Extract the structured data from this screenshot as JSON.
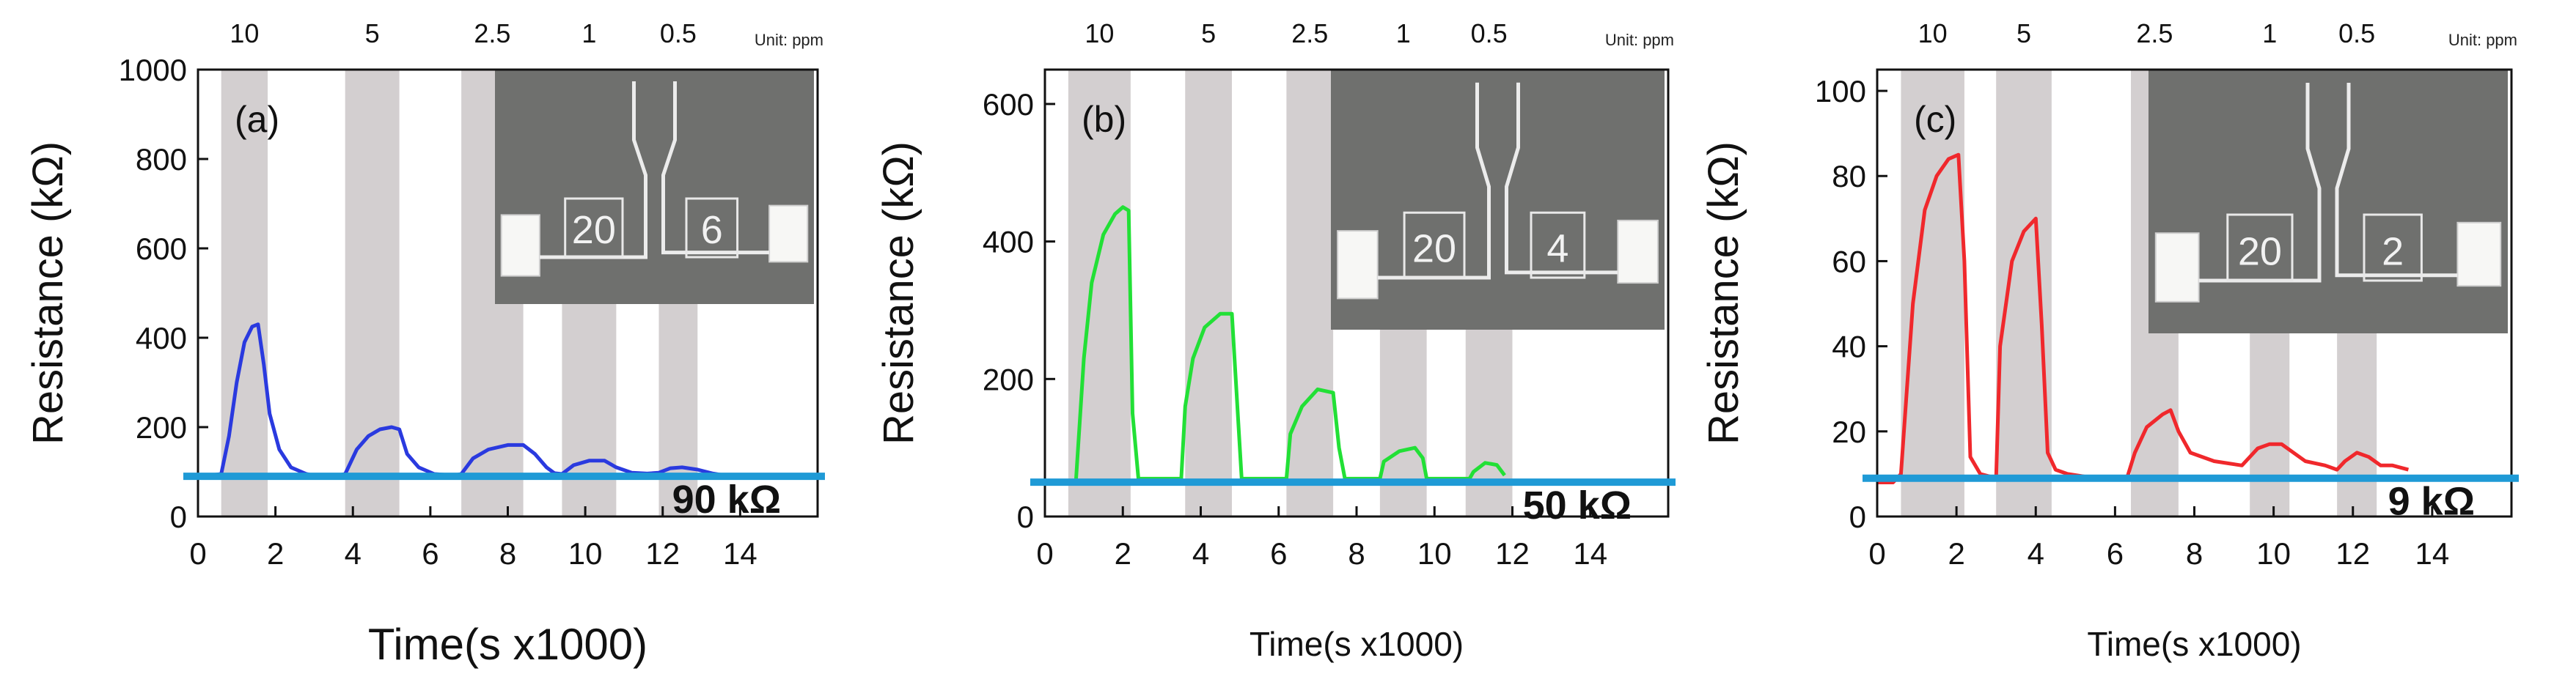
{
  "chart_data": [
    {
      "type": "line",
      "panel_label": "(a)",
      "unit_note": "Unit: ppm",
      "conc_labels": [
        "10",
        "5",
        "2.5",
        "1",
        "0.5"
      ],
      "exposure_windows": [
        [
          0.6,
          1.8
        ],
        [
          3.8,
          5.2
        ],
        [
          6.8,
          8.4
        ],
        [
          9.4,
          10.8
        ],
        [
          11.9,
          12.9
        ]
      ],
      "ylabel": "Resistance (kΩ)",
      "xlabel": "Time(s x1000)",
      "xlim": [
        0,
        16
      ],
      "ylim": [
        0,
        1000
      ],
      "xticks": [
        0,
        2,
        4,
        6,
        8,
        10,
        12,
        14
      ],
      "yticks": [
        0,
        200,
        400,
        600,
        800,
        1000
      ],
      "baseline_value": 90,
      "baseline_label": "90 kΩ",
      "line_color": "#2a3adf",
      "baseline_color": "#1f9ad6",
      "inset_labels": [
        "20",
        "6"
      ],
      "series": [
        {
          "x": [
            0.0,
            0.3,
            0.6,
            0.8,
            1.0,
            1.2,
            1.4,
            1.55,
            1.7,
            1.85,
            2.1,
            2.4,
            2.8,
            3.0,
            3.6,
            3.8,
            4.1,
            4.4,
            4.7,
            5.0,
            5.2,
            5.4,
            5.7,
            6.1,
            6.6,
            6.8,
            7.1,
            7.5,
            8.0,
            8.4,
            8.7,
            9.0,
            9.2,
            9.4,
            9.7,
            10.1,
            10.5,
            10.8,
            11.2,
            11.6,
            11.9,
            12.2,
            12.5,
            12.9,
            13.3,
            13.6
          ],
          "y": [
            92,
            92,
            95,
            180,
            300,
            390,
            425,
            430,
            340,
            230,
            150,
            110,
            95,
            92,
            92,
            95,
            150,
            180,
            195,
            200,
            195,
            140,
            110,
            95,
            92,
            95,
            130,
            150,
            160,
            160,
            140,
            110,
            97,
            95,
            115,
            125,
            125,
            110,
            98,
            96,
            98,
            108,
            110,
            105,
            96,
            92
          ]
        }
      ]
    },
    {
      "type": "line",
      "panel_label": "(b)",
      "unit_note": "Unit: ppm",
      "conc_labels": [
        "10",
        "5",
        "2.5",
        "1",
        "0.5"
      ],
      "exposure_windows": [
        [
          0.6,
          2.2
        ],
        [
          3.6,
          4.8
        ],
        [
          6.2,
          7.4
        ],
        [
          8.6,
          9.8
        ],
        [
          10.8,
          12.0
        ]
      ],
      "ylabel": "Resistance (kΩ)",
      "xlabel": "Time(s x1000)",
      "xlim": [
        0,
        16
      ],
      "ylim": [
        0,
        650
      ],
      "xticks": [
        0,
        2,
        4,
        6,
        8,
        10,
        12,
        14
      ],
      "yticks": [
        0,
        200,
        400,
        600
      ],
      "baseline_value": 50,
      "baseline_label": "50 kΩ",
      "line_color": "#22e036",
      "baseline_color": "#1f9ad6",
      "inset_labels": [
        "20",
        "4"
      ],
      "series": [
        {
          "x": [
            0.8,
            1.0,
            1.2,
            1.5,
            1.8,
            2.0,
            2.15,
            2.25,
            2.4,
            3.5,
            3.6,
            3.8,
            4.1,
            4.5,
            4.8,
            4.95,
            5.05,
            6.2,
            6.3,
            6.6,
            7.0,
            7.4,
            7.55,
            7.7,
            8.6,
            8.7,
            9.1,
            9.5,
            9.7,
            9.8,
            10.9,
            11.0,
            11.3,
            11.6,
            11.8
          ],
          "y": [
            55,
            230,
            340,
            410,
            440,
            450,
            445,
            150,
            55,
            55,
            160,
            230,
            275,
            295,
            295,
            150,
            55,
            55,
            120,
            160,
            185,
            180,
            100,
            55,
            55,
            80,
            95,
            100,
            85,
            55,
            55,
            65,
            78,
            75,
            60
          ]
        }
      ]
    },
    {
      "type": "line",
      "panel_label": "(c)",
      "unit_note": "Unit: ppm",
      "conc_labels": [
        "10",
        "5",
        "2.5",
        "1",
        "0.5"
      ],
      "exposure_windows": [
        [
          0.6,
          2.2
        ],
        [
          3.0,
          4.4
        ],
        [
          6.4,
          7.6
        ],
        [
          9.4,
          10.4
        ],
        [
          11.6,
          12.6
        ]
      ],
      "ylabel": "Resistance (kΩ)",
      "xlabel": "Time(s x1000)",
      "xlim": [
        0,
        16
      ],
      "ylim": [
        0,
        105
      ],
      "xticks": [
        0,
        2,
        4,
        6,
        8,
        10,
        12,
        14
      ],
      "yticks": [
        0,
        20,
        40,
        60,
        80,
        100
      ],
      "baseline_value": 9,
      "baseline_label": "9 kΩ",
      "line_color": "#f0282c",
      "baseline_color": "#1f9ad6",
      "inset_labels": [
        "20",
        "2"
      ],
      "series": [
        {
          "x": [
            0.0,
            0.4,
            0.6,
            0.9,
            1.2,
            1.5,
            1.8,
            2.05,
            2.2,
            2.35,
            2.6,
            3.0,
            3.1,
            3.4,
            3.7,
            4.0,
            4.15,
            4.3,
            4.5,
            4.8,
            5.5,
            6.3,
            6.5,
            6.8,
            7.2,
            7.4,
            7.6,
            7.9,
            8.5,
            9.2,
            9.4,
            9.6,
            9.9,
            10.2,
            10.5,
            10.8,
            11.3,
            11.6,
            11.8,
            12.1,
            12.4,
            12.7,
            13.0,
            13.4
          ],
          "y": [
            8,
            8,
            10,
            50,
            72,
            80,
            84,
            85,
            60,
            14,
            10,
            9,
            40,
            60,
            67,
            70,
            45,
            15,
            11,
            10,
            9,
            9,
            15,
            21,
            24,
            25,
            20,
            15,
            13,
            12,
            14,
            16,
            17,
            17,
            15,
            13,
            12,
            11,
            13,
            15,
            14,
            12,
            12,
            11
          ]
        }
      ]
    }
  ]
}
